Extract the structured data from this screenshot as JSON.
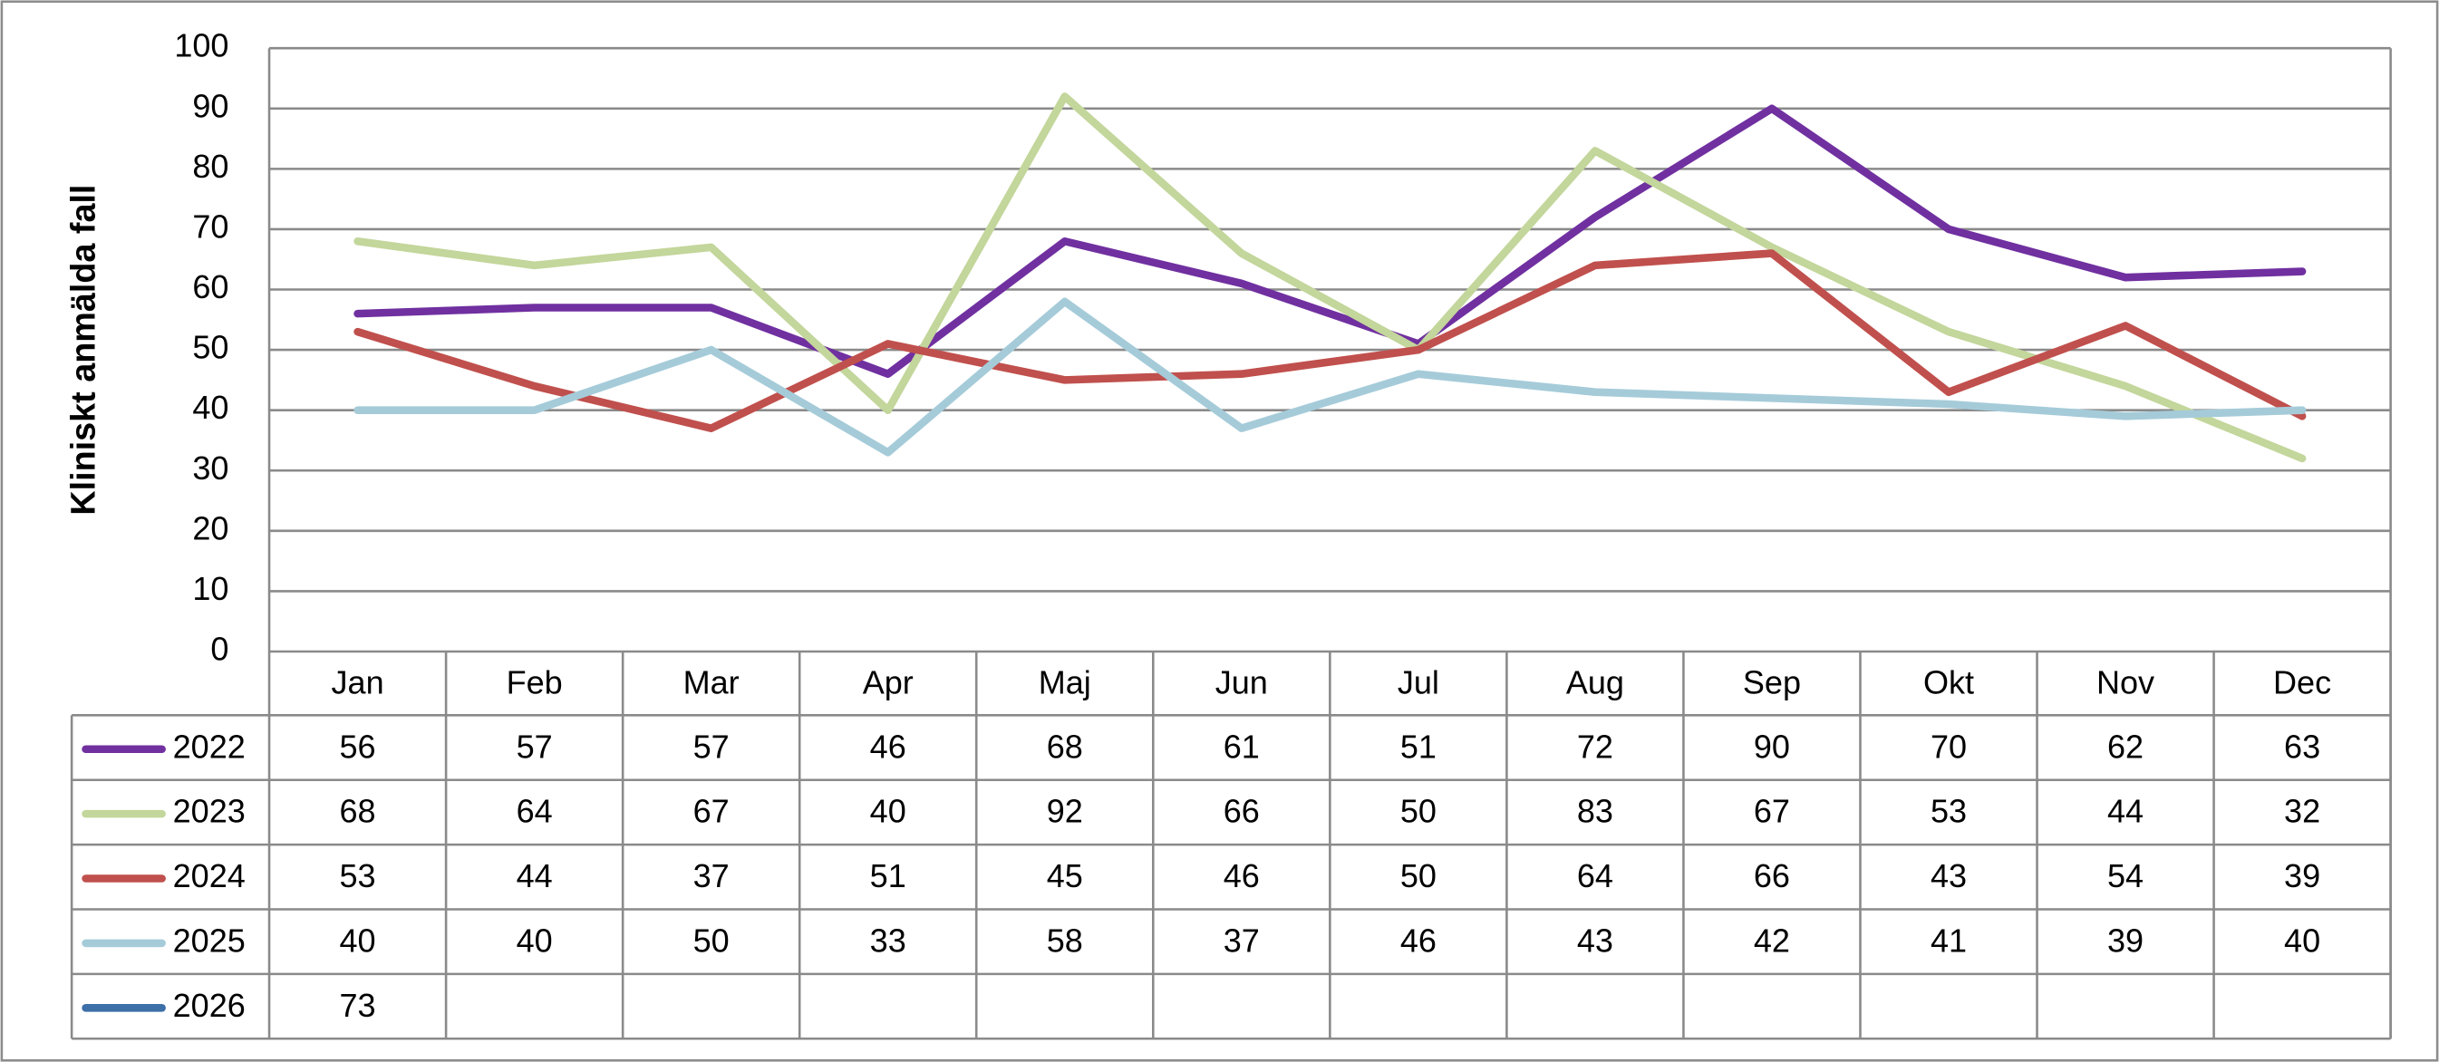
{
  "chart_data": {
    "type": "line",
    "y_label": "Kliniskt anmälda fall",
    "categories": [
      "Jan",
      "Feb",
      "Mar",
      "Apr",
      "Maj",
      "Jun",
      "Jul",
      "Aug",
      "Sep",
      "Okt",
      "Nov",
      "Dec"
    ],
    "series": [
      {
        "name": "2022",
        "color": "#7030a0",
        "values": [
          56,
          57,
          57,
          46,
          68,
          61,
          51,
          72,
          90,
          70,
          62,
          63
        ]
      },
      {
        "name": "2023",
        "color": "#c3d69b",
        "values": [
          68,
          64,
          67,
          40,
          92,
          66,
          50,
          83,
          67,
          53,
          44,
          32
        ]
      },
      {
        "name": "2024",
        "color": "#c0504d",
        "values": [
          53,
          44,
          37,
          51,
          45,
          46,
          50,
          64,
          66,
          43,
          54,
          39
        ]
      },
      {
        "name": "2025",
        "color": "#a5cbd9",
        "values": [
          40,
          40,
          50,
          33,
          58,
          37,
          46,
          43,
          42,
          41,
          39,
          40
        ]
      },
      {
        "name": "2026",
        "color": "#3d6fa8",
        "values": [
          73,
          null,
          null,
          null,
          null,
          null,
          null,
          null,
          null,
          null,
          null,
          null
        ]
      }
    ],
    "ylim": [
      0,
      100
    ],
    "yticks": [
      0,
      10,
      20,
      30,
      40,
      50,
      60,
      70,
      80,
      90,
      100
    ],
    "grid": true
  }
}
